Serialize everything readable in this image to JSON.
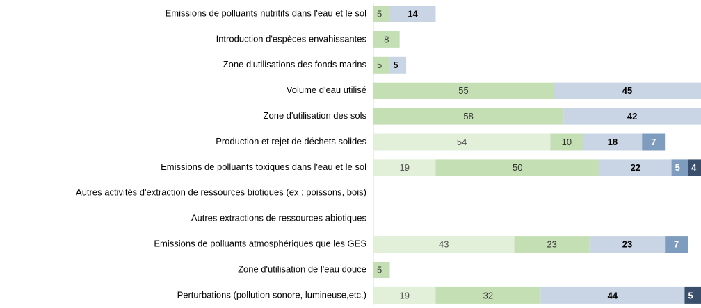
{
  "chart_data": {
    "type": "stacked-bar-horizontal",
    "categories": [
      "Emissions de polluants nutritifs dans l'eau et le sol",
      "Introduction d'espèces envahissantes",
      "Zone d'utilisations des fonds marins",
      "Volume d'eau utilisé",
      "Zone d'utilisation des sols",
      "Production et rejet de déchets solides",
      "Emissions de polluants toxiques dans l'eau et le sol",
      "Autres activités d'extraction de ressources biotiques (ex : poissons, bois)",
      "Autres extractions de ressources abiotiques",
      "Emissions de polluants atmosphériques que les GES",
      "Zone d'utilisation de l'eau douce",
      "Perturbations (pollution sonore, lumineuse,etc.)"
    ],
    "series": [
      {
        "color": "#e2efd9",
        "label_color": "#555555",
        "values": [
          null,
          null,
          null,
          null,
          null,
          54,
          19,
          null,
          null,
          43,
          null,
          19
        ]
      },
      {
        "color": "#c5dfb4",
        "label_color": "#333333",
        "values": [
          5,
          8,
          5,
          55,
          58,
          10,
          50,
          null,
          null,
          23,
          5,
          32
        ]
      },
      {
        "color": "#c9d5e4",
        "label_color": "#000000",
        "values": [
          14,
          null,
          5,
          45,
          42,
          18,
          22,
          null,
          null,
          23,
          null,
          44
        ]
      },
      {
        "color": "#7e9cbd",
        "label_color": "#ffffff",
        "values": [
          null,
          null,
          null,
          null,
          null,
          7,
          5,
          null,
          null,
          7,
          null,
          null
        ]
      },
      {
        "color": "#3a4f6b",
        "label_color": "#ffffff",
        "values": [
          null,
          null,
          null,
          null,
          null,
          null,
          4,
          null,
          null,
          null,
          null,
          5
        ]
      }
    ],
    "xlim": [
      0,
      100
    ]
  }
}
